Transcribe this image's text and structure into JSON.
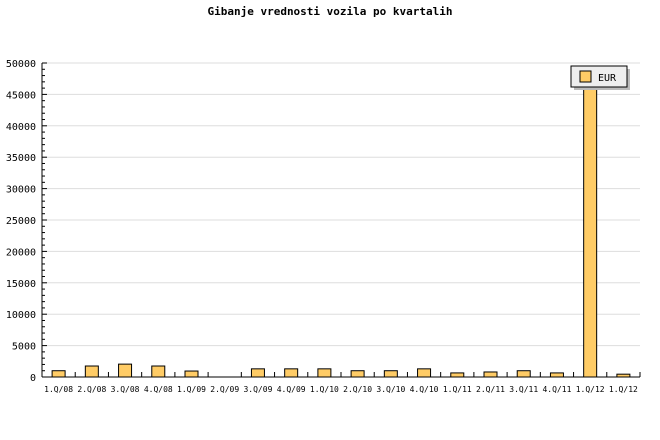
{
  "chart_data": {
    "type": "bar",
    "title": "Gibanje vrednosti vozila po kvartalih",
    "xlabel": "",
    "ylabel": "",
    "categories": [
      "1.Q/08",
      "2.Q/08",
      "3.Q/08",
      "4.Q/08",
      "1.Q/09",
      "2.Q/09",
      "3.Q/09",
      "4.Q/09",
      "1.Q/10",
      "2.Q/10",
      "3.Q/10",
      "4.Q/10",
      "1.Q/11",
      "2.Q/11",
      "3.Q/11",
      "4.Q/11",
      "1.Q/12",
      "1.Q/12"
    ],
    "series": [
      {
        "name": "EUR",
        "color": "#ffcc66",
        "values": [
          1000,
          1750,
          2050,
          1750,
          950,
          0,
          1300,
          1300,
          1300,
          1000,
          1000,
          1300,
          650,
          800,
          1000,
          650,
          47500,
          450
        ]
      }
    ],
    "ylim": [
      0,
      50000
    ],
    "yticks": [
      0,
      5000,
      10000,
      15000,
      20000,
      25000,
      30000,
      35000,
      40000,
      45000,
      50000
    ],
    "grid": true,
    "legend": "top-right"
  }
}
